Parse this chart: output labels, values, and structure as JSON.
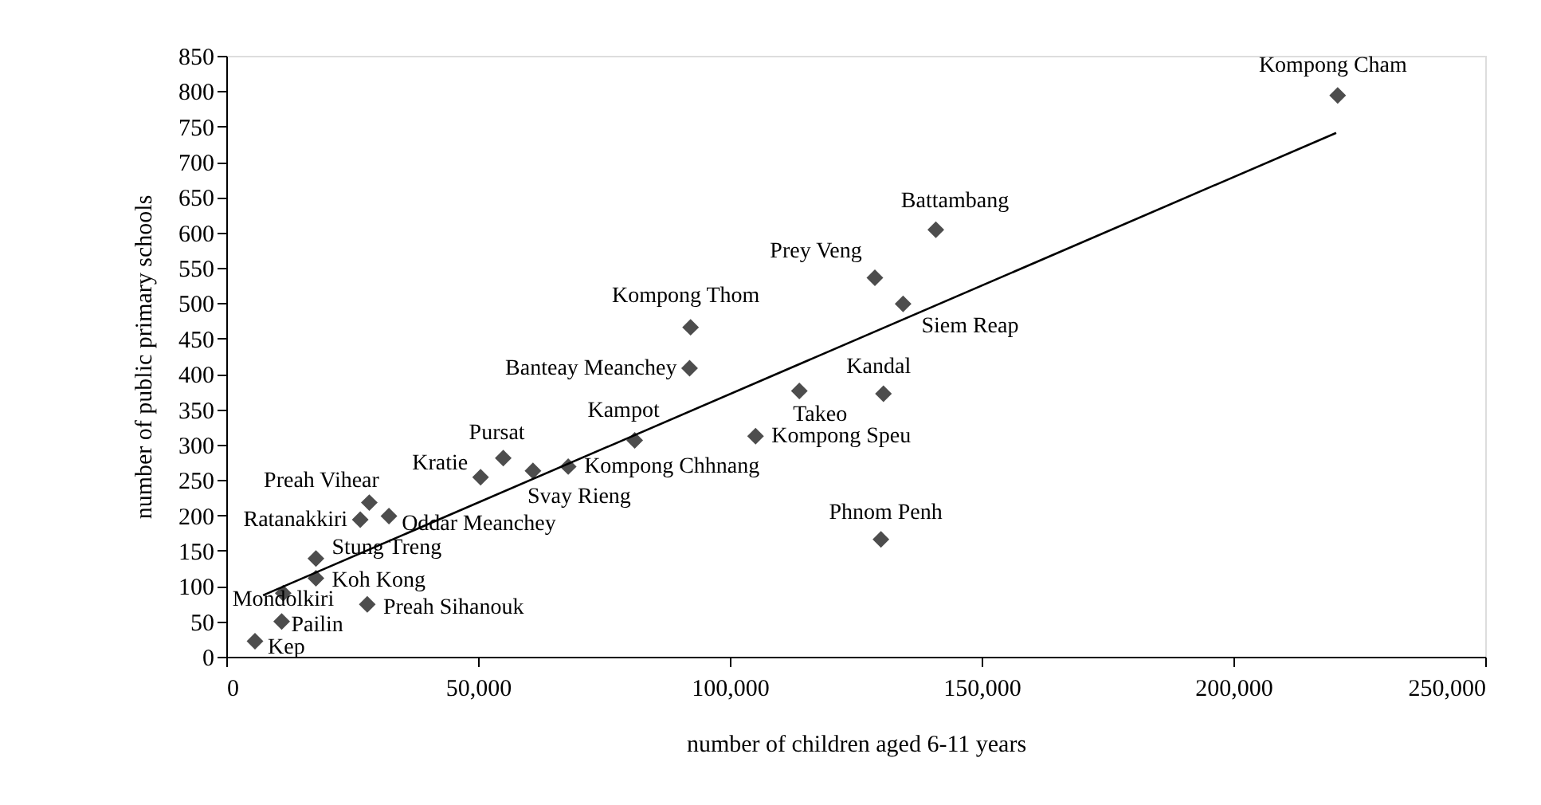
{
  "chart_data": {
    "type": "scatter",
    "xlabel": "number of children aged 6-11 years",
    "ylabel": "number of public primary schools",
    "xlim": [
      0,
      250000
    ],
    "ylim": [
      0,
      850
    ],
    "xticks": [
      0,
      {
        "value": 50000,
        "label": "50,000"
      },
      {
        "value": 100000,
        "label": "100,000"
      },
      {
        "value": 150000,
        "label": "150,000"
      },
      {
        "value": 200000,
        "label": "200,000"
      },
      {
        "value": 250000,
        "label": "250,000"
      }
    ],
    "yticks": [
      0,
      50,
      100,
      150,
      200,
      250,
      300,
      350,
      400,
      450,
      500,
      550,
      600,
      650,
      700,
      750,
      800,
      850
    ],
    "grid": false,
    "series": [
      {
        "marker": "diamond",
        "color": "#4d4d4d",
        "x": [
          5700,
          11000,
          11300,
          17800,
          17800,
          28000,
          26600,
          28400,
          32300,
          50500,
          55000,
          60900,
          67900,
          81100,
          92200,
          92000,
          113800,
          105100,
          130500,
          130000,
          128800,
          134400,
          140900,
          220700
        ],
        "values": [
          22,
          50,
          90,
          111,
          139,
          74,
          194,
          218,
          199,
          254,
          281,
          263,
          269,
          306,
          466,
          408,
          376,
          312,
          372,
          166,
          536,
          499,
          604,
          794
        ]
      },
      {
        "type": "line",
        "color": "#000000",
        "line_style": "solid",
        "x": [
          7300,
          220400
        ],
        "values": [
          87,
          741
        ]
      }
    ],
    "annotations": [
      {
        "text": "Kep",
        "x": 5700,
        "y": 22
      },
      {
        "text": "Pailin",
        "x": 11000,
        "y": 50
      },
      {
        "text": "Mondolkiri",
        "x": 11300,
        "y": 90
      },
      {
        "text": "Koh Kong",
        "x": 17800,
        "y": 111
      },
      {
        "text": "Stung Treng",
        "x": 17800,
        "y": 139
      },
      {
        "text": "Preah Sihanouk",
        "x": 28000,
        "y": 74
      },
      {
        "text": "Ratanakkiri",
        "x": 26600,
        "y": 194
      },
      {
        "text": "Preah Vihear",
        "x": 28400,
        "y": 218
      },
      {
        "text": "Oddar Meanchey",
        "x": 32300,
        "y": 199
      },
      {
        "text": "Kratie",
        "x": 50500,
        "y": 254
      },
      {
        "text": "Pursat",
        "x": 55000,
        "y": 281
      },
      {
        "text": "Svay Rieng",
        "x": 60900,
        "y": 263
      },
      {
        "text": "Kompong Chhnang",
        "x": 67900,
        "y": 269
      },
      {
        "text": "Kampot",
        "x": 81100,
        "y": 306
      },
      {
        "text": "Kompong Thom",
        "x": 92200,
        "y": 466
      },
      {
        "text": "Banteay Meanchey",
        "x": 92000,
        "y": 408
      },
      {
        "text": "Takeo",
        "x": 113800,
        "y": 376
      },
      {
        "text": "Kompong Speu",
        "x": 105100,
        "y": 312
      },
      {
        "text": "Kandal",
        "x": 130500,
        "y": 372
      },
      {
        "text": "Phnom Penh",
        "x": 130000,
        "y": 166
      },
      {
        "text": "Prey Veng",
        "x": 128800,
        "y": 536
      },
      {
        "text": "Siem Reap",
        "x": 134400,
        "y": 499
      },
      {
        "text": "Battambang",
        "x": 140900,
        "y": 604
      },
      {
        "text": "Kompong Cham",
        "x": 220700,
        "y": 794
      }
    ]
  }
}
